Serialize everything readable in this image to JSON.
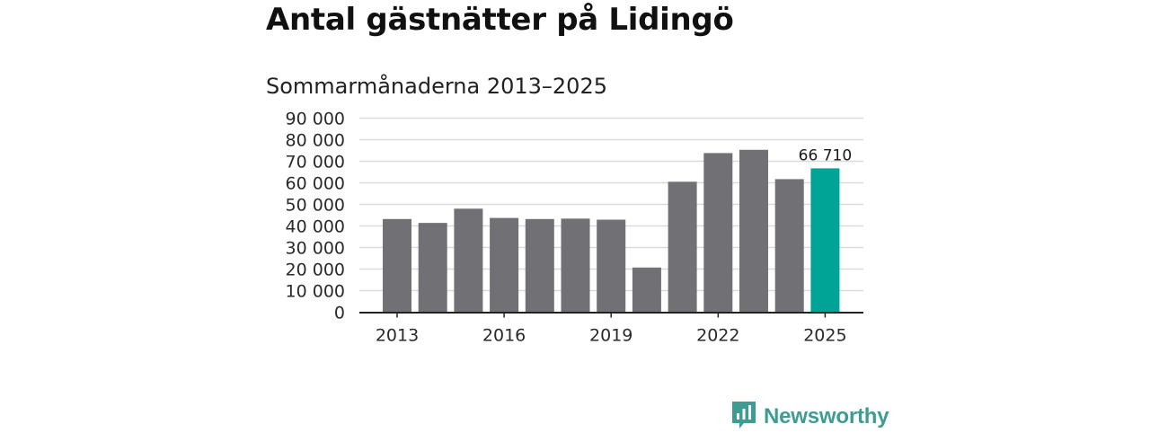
{
  "chart_data": {
    "type": "bar",
    "title": "Antal gästnätter på Lidingö",
    "subtitle": "Sommarmånaderna 2013–2025",
    "categories": [
      "2013",
      "2014",
      "2015",
      "2016",
      "2017",
      "2018",
      "2019",
      "2020",
      "2021",
      "2022",
      "2023",
      "2024",
      "2025"
    ],
    "values": [
      43200,
      41400,
      48000,
      43700,
      43200,
      43400,
      42900,
      20700,
      60500,
      73800,
      75300,
      61700,
      66710
    ],
    "x_tick_labels": [
      "2013",
      "2016",
      "2019",
      "2022",
      "2025"
    ],
    "y_ticks": [
      "0",
      "10 000",
      "20 000",
      "30 000",
      "40 000",
      "50 000",
      "60 000",
      "70 000",
      "80 000",
      "90 000"
    ],
    "ylim": [
      0,
      90000
    ],
    "data_labels": [
      {
        "category": "2025",
        "text": "66 710"
      }
    ],
    "xlabel": "",
    "ylabel": "",
    "grid": true,
    "colors": {
      "bar": "#717075",
      "highlight": "#00a497",
      "grid": "#d9d9d9",
      "axis": "#222222"
    },
    "highlight_category": "2025"
  },
  "brand": {
    "name": "Newsworthy",
    "icon": "newsworthy-logo-icon",
    "color": "#3e9c92"
  }
}
